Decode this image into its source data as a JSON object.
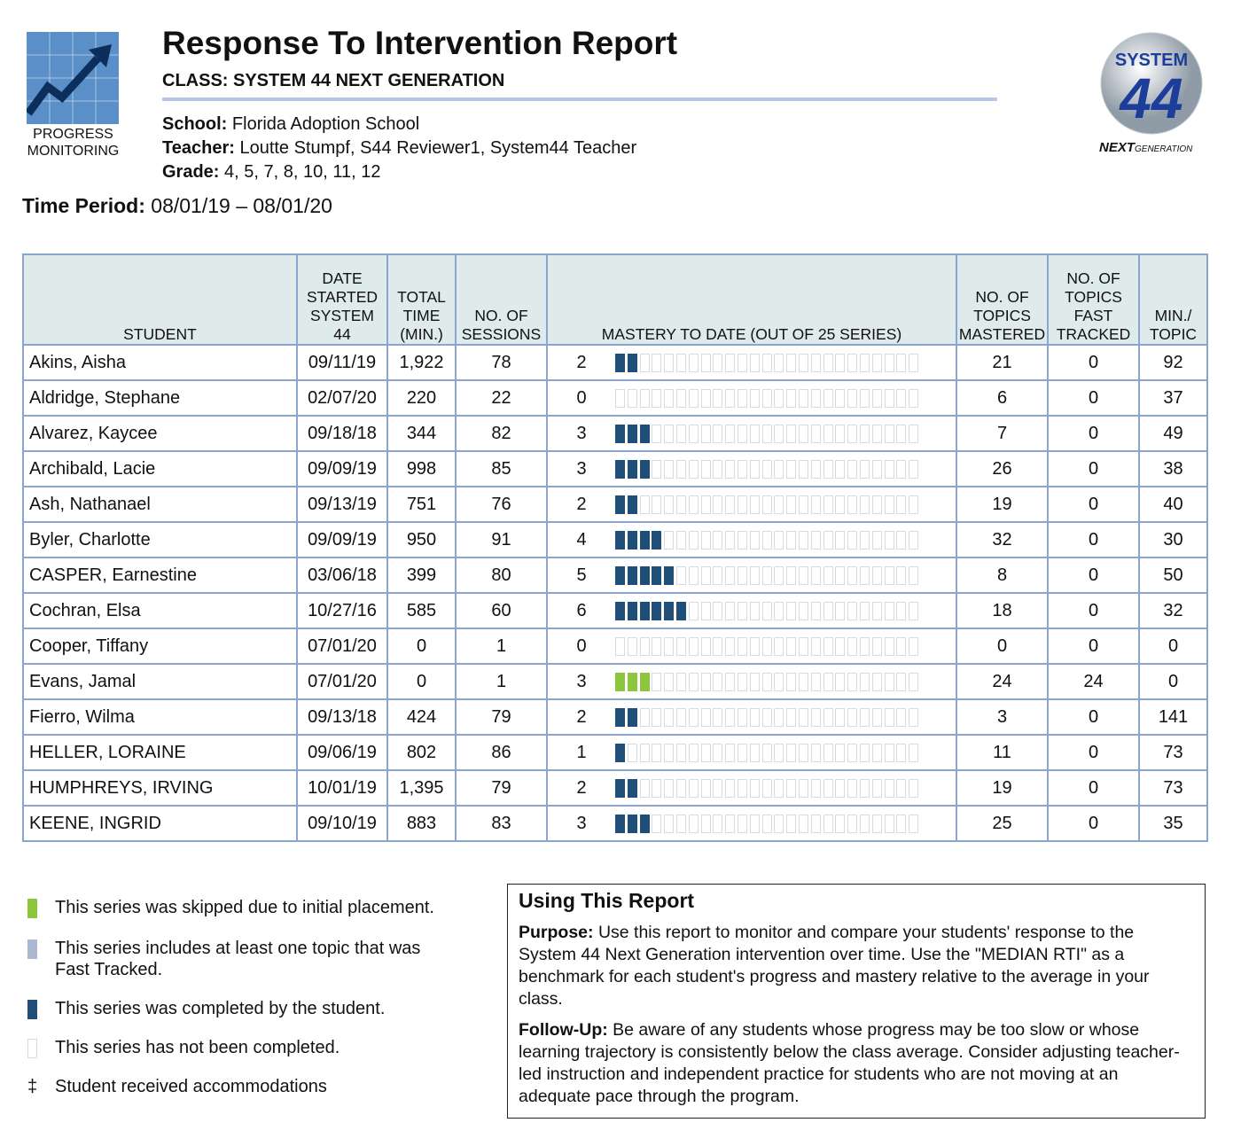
{
  "logo_left": {
    "text": "PROGRESS\nMONITORING"
  },
  "logo_right": {
    "system": "SYSTEM",
    "number": "44",
    "next": "NEXT",
    "generation": "GENERATION"
  },
  "header": {
    "title": "Response To Intervention Report",
    "class": "CLASS: SYSTEM 44 NEXT GENERATION",
    "fields": [
      {
        "label": "School:",
        "value": "Florida Adoption School"
      },
      {
        "label": "Teacher:",
        "value": "Loutte Stumpf, S44 Reviewer1, System44 Teacher"
      },
      {
        "label": "Grade:",
        "value": "4, 5, 7, 8, 10, 11, 12"
      }
    ],
    "time_period": {
      "label": "Time Period:",
      "value": "08/01/19 – 08/01/20"
    }
  },
  "table": {
    "columns": [
      "STUDENT",
      "DATE\nSTARTED\nSYSTEM\n44",
      "TOTAL\nTIME\n(MIN.)",
      "NO. OF\nSESSIONS",
      "MASTERY TO DATE (OUT OF 25 SERIES)",
      "NO. OF\nTOPICS\nMASTERED",
      "NO. OF\nTOPICS\nFAST\nTRACKED",
      "MIN./\nTOPIC"
    ],
    "mastery_total": 25,
    "rows": [
      {
        "student": "Akins, Aisha",
        "date": "09/11/19",
        "total_time": "1,922",
        "sessions": 78,
        "mastery": 2,
        "mastery_color": "#1f4e79",
        "mastered": 21,
        "fast_tracked": 0,
        "min_topic": 92
      },
      {
        "student": "Aldridge, Stephane",
        "date": "02/07/20",
        "total_time": "220",
        "sessions": 22,
        "mastery": 0,
        "mastery_color": "#1f4e79",
        "mastered": 6,
        "fast_tracked": 0,
        "min_topic": 37
      },
      {
        "student": "Alvarez, Kaycee",
        "date": "09/18/18",
        "total_time": "344",
        "sessions": 82,
        "mastery": 3,
        "mastery_color": "#1f4e79",
        "mastered": 7,
        "fast_tracked": 0,
        "min_topic": 49
      },
      {
        "student": "Archibald, Lacie",
        "date": "09/09/19",
        "total_time": "998",
        "sessions": 85,
        "mastery": 3,
        "mastery_color": "#1f4e79",
        "mastered": 26,
        "fast_tracked": 0,
        "min_topic": 38
      },
      {
        "student": "Ash, Nathanael",
        "date": "09/13/19",
        "total_time": "751",
        "sessions": 76,
        "mastery": 2,
        "mastery_color": "#1f4e79",
        "mastered": 19,
        "fast_tracked": 0,
        "min_topic": 40
      },
      {
        "student": "Byler, Charlotte",
        "date": "09/09/19",
        "total_time": "950",
        "sessions": 91,
        "mastery": 4,
        "mastery_color": "#1f4e79",
        "mastered": 32,
        "fast_tracked": 0,
        "min_topic": 30
      },
      {
        "student": "CASPER, Earnestine",
        "date": "03/06/18",
        "total_time": "399",
        "sessions": 80,
        "mastery": 5,
        "mastery_color": "#1f4e79",
        "mastered": 8,
        "fast_tracked": 0,
        "min_topic": 50
      },
      {
        "student": "Cochran, Elsa",
        "date": "10/27/16",
        "total_time": "585",
        "sessions": 60,
        "mastery": 6,
        "mastery_color": "#1f4e79",
        "mastered": 18,
        "fast_tracked": 0,
        "min_topic": 32
      },
      {
        "student": "Cooper, Tiffany",
        "date": "07/01/20",
        "total_time": "0",
        "sessions": 1,
        "mastery": 0,
        "mastery_color": "#1f4e79",
        "mastered": 0,
        "fast_tracked": 0,
        "min_topic": 0
      },
      {
        "student": "Evans, Jamal",
        "date": "07/01/20",
        "total_time": "0",
        "sessions": 1,
        "mastery": 3,
        "mastery_color": "#8cc63f",
        "mastered": 24,
        "fast_tracked": 24,
        "min_topic": 0
      },
      {
        "student": "Fierro, Wilma",
        "date": "09/13/18",
        "total_time": "424",
        "sessions": 79,
        "mastery": 2,
        "mastery_color": "#1f4e79",
        "mastered": 3,
        "fast_tracked": 0,
        "min_topic": 141
      },
      {
        "student": "HELLER, LORAINE",
        "date": "09/06/19",
        "total_time": "802",
        "sessions": 86,
        "mastery": 1,
        "mastery_color": "#1f4e79",
        "mastered": 11,
        "fast_tracked": 0,
        "min_topic": 73
      },
      {
        "student": "HUMPHREYS, IRVING",
        "date": "10/01/19",
        "total_time": "1,395",
        "sessions": 79,
        "mastery": 2,
        "mastery_color": "#1f4e79",
        "mastered": 19,
        "fast_tracked": 0,
        "min_topic": 73
      },
      {
        "student": "KEENE, INGRID",
        "date": "09/10/19",
        "total_time": "883",
        "sessions": 83,
        "mastery": 3,
        "mastery_color": "#1f4e79",
        "mastered": 25,
        "fast_tracked": 0,
        "min_topic": 35
      }
    ]
  },
  "legend": [
    {
      "color": "#8cc63f",
      "label": "This series was skipped due to initial placement."
    },
    {
      "color": "#aab8d0",
      "label": "This series includes at least one topic that was\nFast Tracked."
    },
    {
      "color": "#1f4e79",
      "label": "This series was completed by the student."
    },
    {
      "color": "#ffffff",
      "label": "This series has not been completed."
    },
    {
      "symbol": "‡",
      "label": "Student received accommodations"
    }
  ],
  "using": {
    "title": "Using This Report",
    "paragraphs": [
      {
        "label": "Purpose:",
        "text": "Use this report to monitor and compare your students' response to the System 44 Next Generation intervention over time. Use the \"MEDIAN RTI\" as a benchmark for each student's progress and mastery relative to the average in your class."
      },
      {
        "label": "Follow-Up:",
        "text": "Be aware of any students whose progress may be too slow or whose learning trajectory is consistently below the class average. Consider adjusting teacher-led instruction and independent practice for students who are not moving at an adequate pace through the program."
      }
    ]
  }
}
